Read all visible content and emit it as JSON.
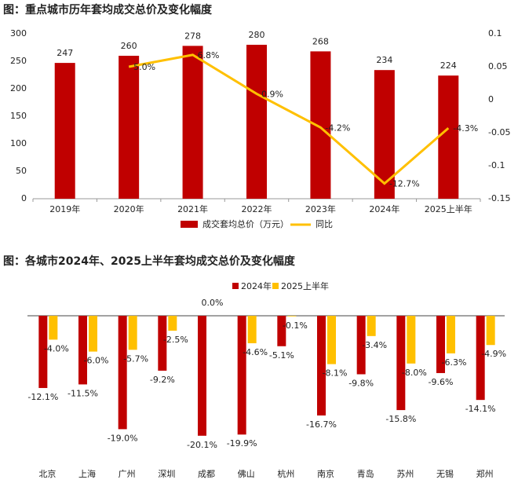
{
  "chart_data": [
    {
      "type": "bar_line",
      "title": "图：重点城市历年套均成交总价及变化幅度",
      "categories": [
        "2019年",
        "2020年",
        "2021年",
        "2022年",
        "2023年",
        "2024年",
        "2025上半年"
      ],
      "series": [
        {
          "name": "成交套均总价（万元）",
          "color": "#c00000",
          "type": "bar",
          "values": [
            247,
            260,
            278,
            280,
            268,
            234,
            224
          ]
        },
        {
          "name": "同比",
          "color": "#ffc000",
          "type": "line",
          "axis": "y2",
          "values": [
            null,
            0.05,
            0.068,
            0.009,
            -0.042,
            -0.127,
            -0.043
          ],
          "value_labels": [
            null,
            "5.0%",
            "6.8%",
            "0.9%",
            "-4.2%",
            "-12.7%",
            "-4.3%"
          ]
        }
      ],
      "ylim": [
        0,
        300
      ],
      "yticks": [
        0,
        50,
        100,
        150,
        200,
        250,
        300
      ],
      "y2lim": [
        -0.15,
        0.1
      ],
      "y2ticks": [
        -0.15,
        -0.1,
        -0.05,
        0,
        0.05,
        0.1
      ]
    },
    {
      "type": "grouped_bar",
      "title": "图：各城市2024年、2025上半年套均成交总价及变化幅度",
      "categories": [
        "北京",
        "上海",
        "广州",
        "深圳",
        "成都",
        "佛山",
        "杭州",
        "南京",
        "青岛",
        "苏州",
        "无锡",
        "郑州"
      ],
      "series": [
        {
          "name": "2024年",
          "color": "#c00000",
          "values": [
            -12.1,
            -11.5,
            -19.0,
            -9.2,
            -20.1,
            -19.9,
            -5.1,
            -16.7,
            -9.8,
            -15.8,
            -9.6,
            -14.1
          ],
          "value_labels": [
            "-12.1%",
            "-11.5%",
            "-19.0%",
            "-9.2%",
            "-20.1%",
            "-19.9%",
            "-5.1%",
            "-16.7%",
            "-9.8%",
            "-15.8%",
            "-9.6%",
            "-14.1%"
          ]
        },
        {
          "name": "2025上半年",
          "color": "#ffc000",
          "values": [
            -4.0,
            -6.0,
            -5.7,
            -2.5,
            0.0,
            -4.6,
            -0.1,
            -8.1,
            -3.4,
            -8.0,
            -6.3,
            -4.9
          ],
          "value_labels": [
            "-4.0%",
            "-6.0%",
            "-5.7%",
            "-2.5%",
            "0.0%",
            "-4.6%",
            "-0.1%",
            "-8.1%",
            "-3.4%",
            "-8.0%",
            "-6.3%",
            "-4.9%"
          ]
        }
      ]
    }
  ]
}
